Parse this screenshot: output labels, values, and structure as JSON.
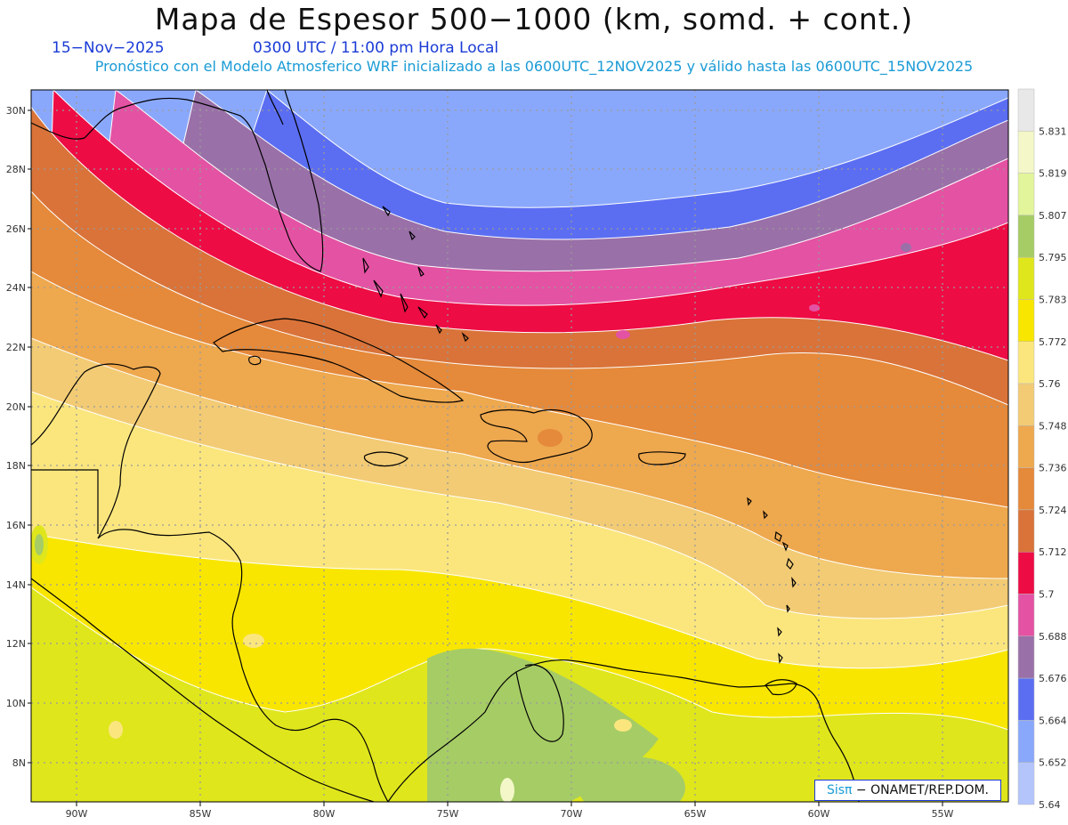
{
  "header": {
    "title": "Mapa de Espesor 500−1000 (km, somd. + cont.)",
    "date": "15−Nov−2025",
    "time": "0300 UTC / 11:00 pm Hora Local",
    "subtitle": "Pronóstico con el Modelo Atmosferico WRF inicializado a las 0600UTC_12NOV2025 y válido hasta las  0600UTC_15NOV2025"
  },
  "map": {
    "lat_labels": [
      "30N",
      "28N",
      "26N",
      "24N",
      "22N",
      "20N",
      "18N",
      "16N",
      "14N",
      "12N",
      "10N",
      "8N"
    ],
    "lon_labels": [
      "90W",
      "85W",
      "80W",
      "75W",
      "70W",
      "65W",
      "60W",
      "55W"
    ],
    "bands": [
      {
        "color": "#b3c5fb"
      },
      {
        "color": "#8aa8fb"
      },
      {
        "color": "#5b6ef2"
      },
      {
        "color": "#9a70a8"
      },
      {
        "color": "#e452a3"
      },
      {
        "color": "#ee0c44"
      },
      {
        "color": "#d97339"
      },
      {
        "color": "#e5893a"
      },
      {
        "color": "#eea84e"
      },
      {
        "color": "#f2cb74"
      },
      {
        "color": "#fbe67e"
      },
      {
        "color": "#f8e600"
      },
      {
        "color": "#dfe61c"
      },
      {
        "color": "#a6cc66"
      }
    ]
  },
  "colorbar": {
    "labels": [
      "5.831",
      "5.819",
      "5.807",
      "5.795",
      "5.783",
      "5.772",
      "5.76",
      "5.748",
      "5.736",
      "5.724",
      "5.712",
      "5.7",
      "5.688",
      "5.676",
      "5.664",
      "5.652",
      "5.64"
    ],
    "colors": [
      "#e8e8e8",
      "#f4f8c8",
      "#e2f59b",
      "#a6cc66",
      "#dfe61c",
      "#f8e600",
      "#fbe67e",
      "#f2cb74",
      "#eea84e",
      "#e5893a",
      "#d97339",
      "#ee0c44",
      "#e452a3",
      "#9a70a8",
      "#5b6ef2",
      "#8aa8fb",
      "#b3c5fb"
    ]
  },
  "credit": {
    "sis": "Sisπ",
    "text": " − ONAMET/REP.DOM."
  }
}
